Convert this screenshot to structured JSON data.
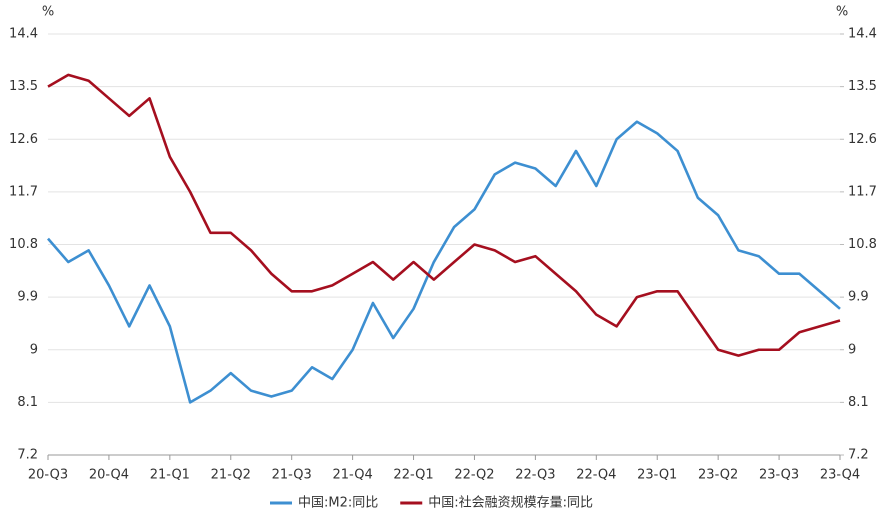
{
  "chart_data": {
    "type": "line",
    "y_label": "%",
    "y2_label": "%",
    "categories": [
      "20-Q3",
      null,
      null,
      "20-Q4",
      null,
      null,
      "21-Q1",
      null,
      null,
      "21-Q2",
      null,
      null,
      "21-Q3",
      null,
      null,
      "21-Q4",
      null,
      null,
      "22-Q1",
      null,
      null,
      "22-Q2",
      null,
      null,
      "22-Q3",
      null,
      null,
      "22-Q4",
      null,
      null,
      "23-Q1",
      null,
      null,
      "23-Q2",
      null,
      null,
      "23-Q3",
      null,
      null,
      "23-Q4"
    ],
    "series": [
      {
        "name": "中国:M2:同比",
        "color": "#3d8fd1",
        "values": [
          10.9,
          10.5,
          10.7,
          10.1,
          9.4,
          10.1,
          9.4,
          8.1,
          8.3,
          8.6,
          8.3,
          8.2,
          8.3,
          8.7,
          8.5,
          9.0,
          9.8,
          9.2,
          9.7,
          10.5,
          11.1,
          11.4,
          12.0,
          12.2,
          12.1,
          11.8,
          12.4,
          11.8,
          12.6,
          12.9,
          12.7,
          12.4,
          11.6,
          11.3,
          10.7,
          10.6,
          10.3,
          10.3,
          10.0,
          9.7
        ]
      },
      {
        "name": "中国:社会融资规模存量:同比",
        "color": "#a50f1f",
        "axis": "y2",
        "values": [
          13.5,
          13.7,
          13.6,
          13.3,
          13.0,
          13.3,
          12.3,
          11.7,
          11.0,
          11.0,
          10.7,
          10.3,
          10.0,
          10.0,
          10.1,
          10.3,
          10.5,
          10.2,
          10.5,
          10.2,
          10.5,
          10.8,
          10.7,
          10.5,
          10.6,
          10.3,
          10.0,
          9.6,
          9.4,
          9.9,
          10.0,
          10.0,
          9.5,
          9.0,
          8.9,
          9.0,
          9.0,
          9.3,
          9.4,
          9.5
        ]
      }
    ],
    "ylim": [
      7.2,
      14.4
    ],
    "yticks": [
      7.2,
      8.1,
      9,
      9.9,
      10.8,
      11.7,
      12.6,
      13.5,
      14.4
    ],
    "y2lim": [
      7.2,
      14.4
    ],
    "y2ticks": [
      7.2,
      8.1,
      9,
      9.9,
      10.8,
      11.7,
      12.6,
      13.5,
      14.4
    ],
    "grid": true,
    "legend": "bottom"
  }
}
